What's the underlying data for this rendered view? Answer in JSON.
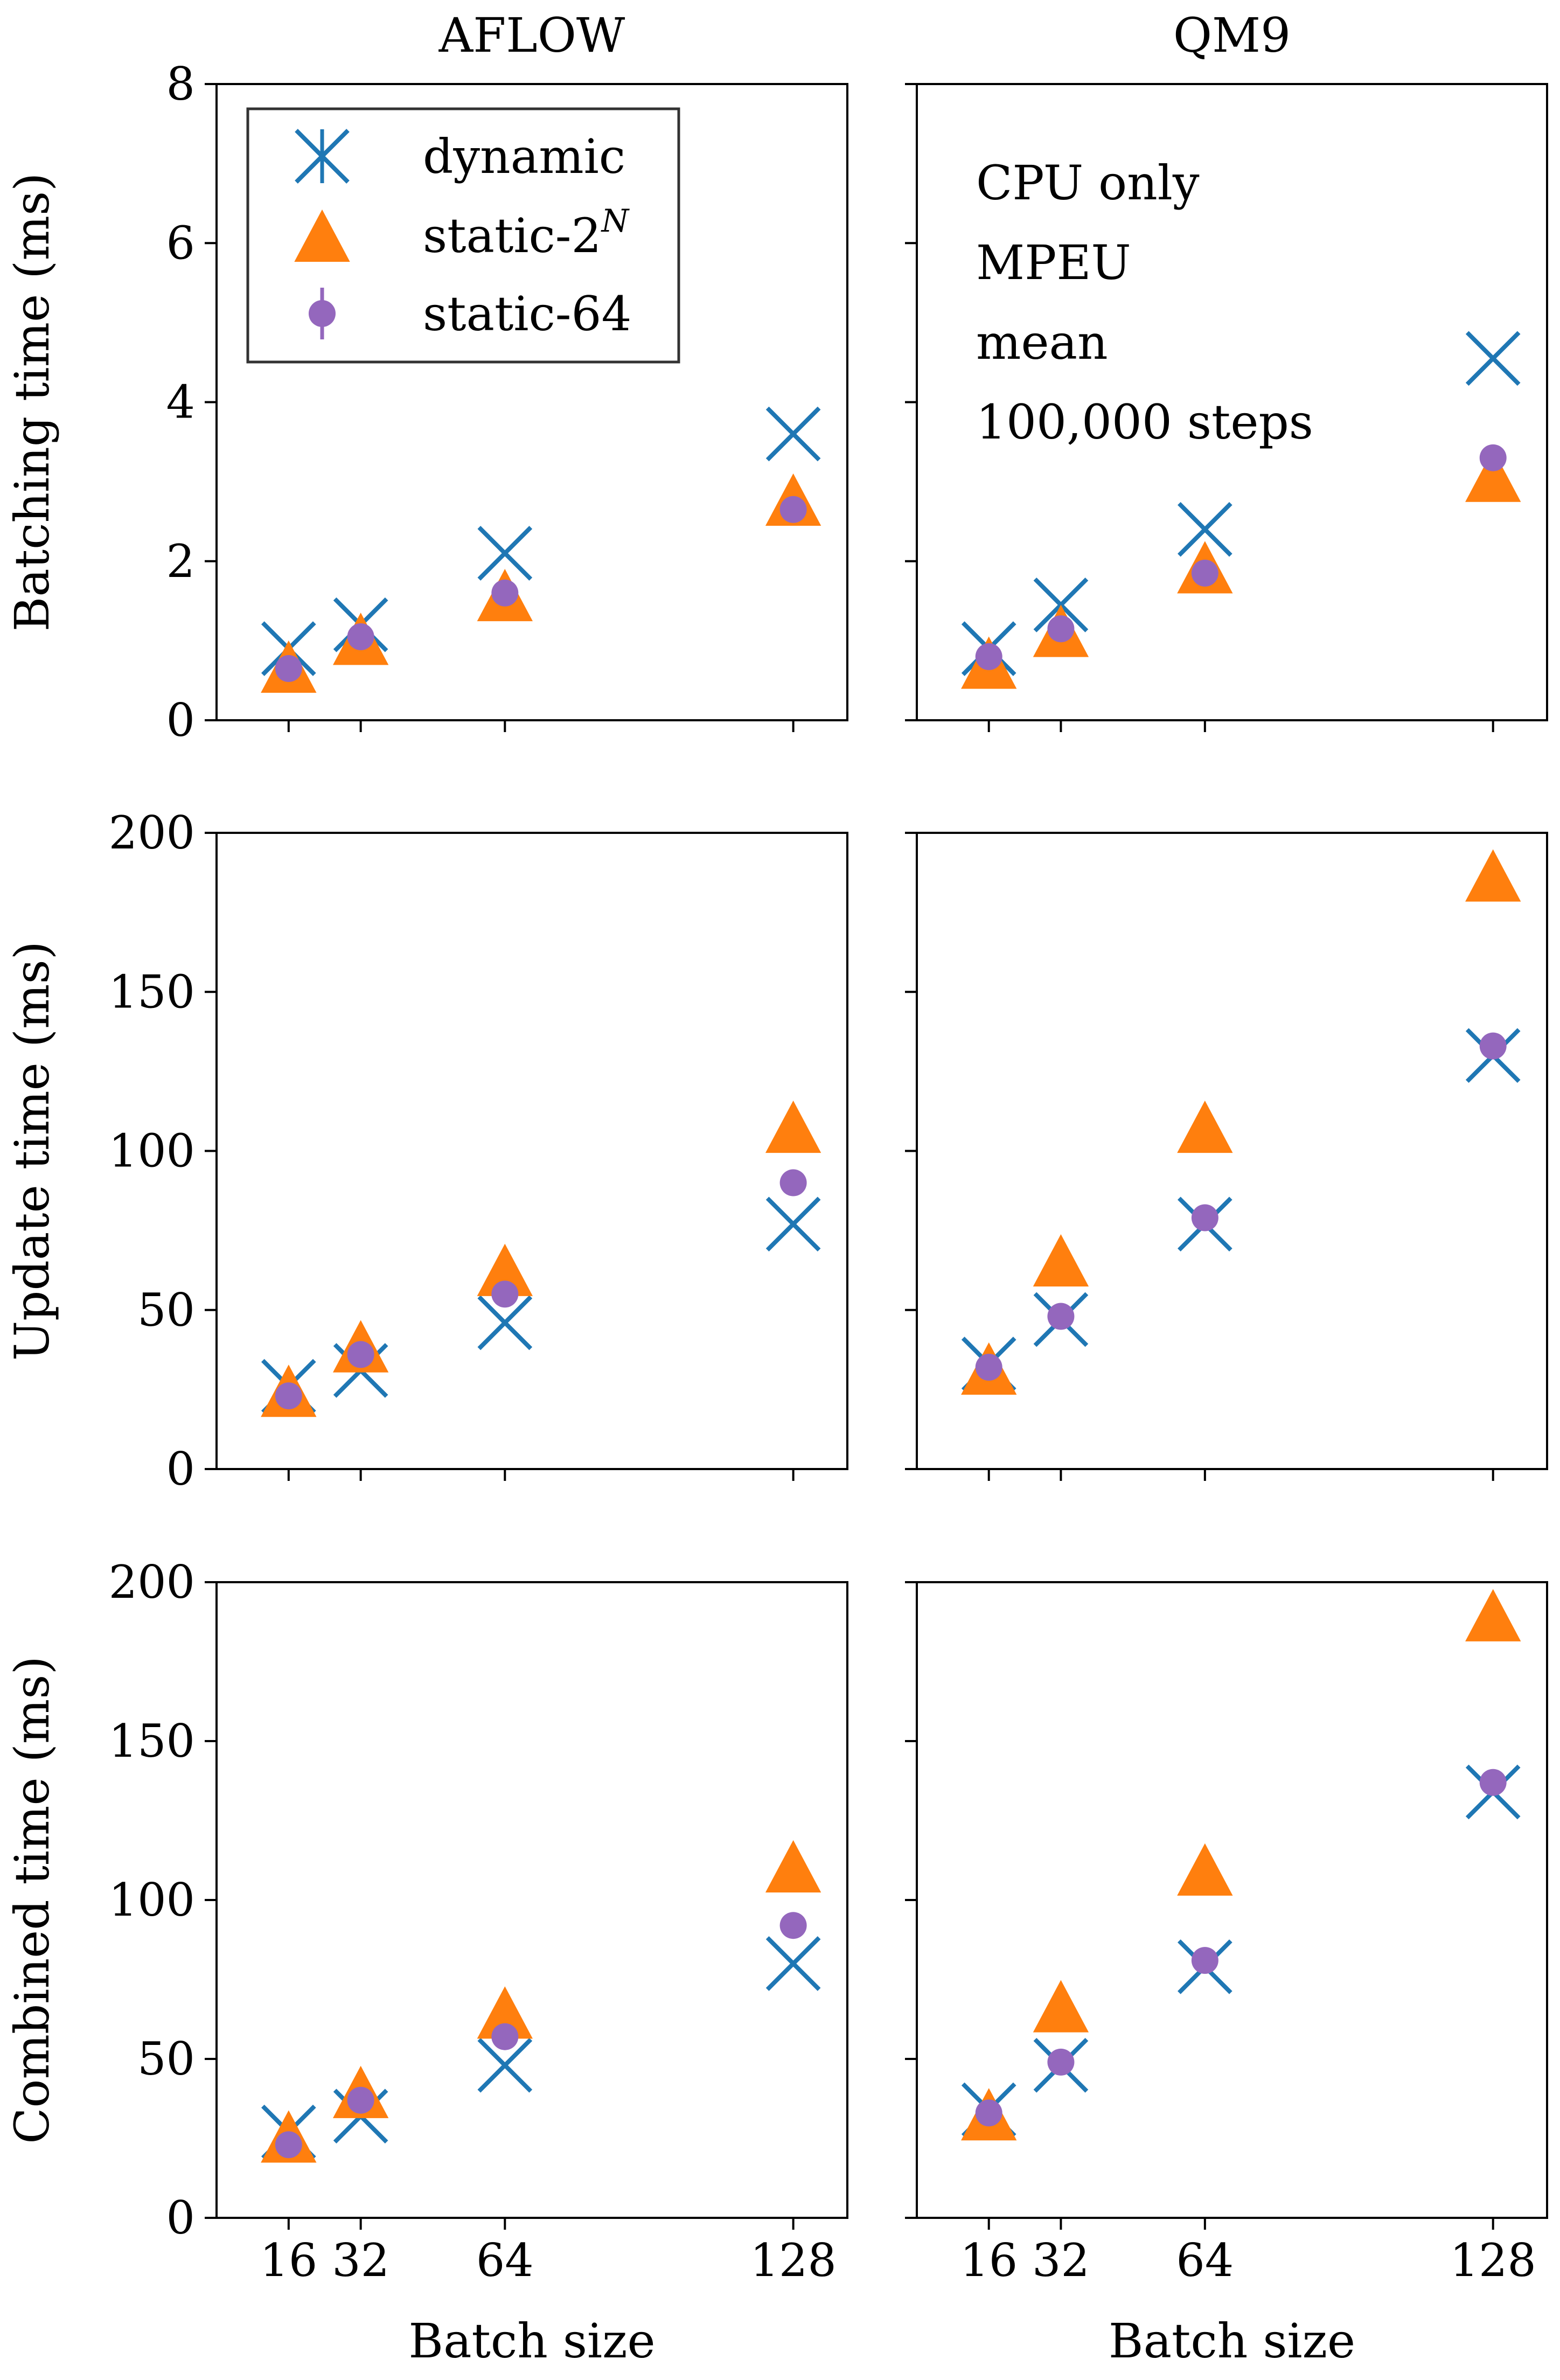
{
  "chart_data": {
    "type": "scatter",
    "layout": "3x2 grid, shared x axis per column, shared y axis per row",
    "columns": [
      "AFLOW",
      "QM9"
    ],
    "x": [
      16,
      32,
      64,
      128
    ],
    "x_tick_labels": [
      "16",
      "32",
      "64",
      "128"
    ],
    "xlabel": "Batch size",
    "xlim": [
      0,
      140
    ],
    "series_style": [
      {
        "name": "dynamic",
        "label": "dynamic",
        "marker": "x",
        "color": "#1f77b4"
      },
      {
        "name": "static-2N",
        "label": "static-2",
        "label_superscript": "N",
        "marker": "triangle",
        "color": "#ff7f0e"
      },
      {
        "name": "static-64",
        "label": "static-64",
        "marker": "circle",
        "color": "#9467bd"
      }
    ],
    "legend_position": "top-left of AFLOW batching panel",
    "annotation": [
      "CPU only",
      "MPEU",
      "mean",
      "100,000 steps"
    ],
    "rows": [
      {
        "ylabel": "Batching time (ms)",
        "ylim": [
          0,
          8
        ],
        "yticks": [
          0,
          2,
          4,
          6,
          8
        ],
        "panels": [
          {
            "dataset": "AFLOW",
            "series": [
              {
                "name": "dynamic",
                "values": [
                  0.9,
                  1.2,
                  2.1,
                  3.6
                ]
              },
              {
                "name": "static-2N",
                "values": [
                  0.65,
                  1.0,
                  1.55,
                  2.75
                ]
              },
              {
                "name": "static-64",
                "values": [
                  0.65,
                  1.05,
                  1.6,
                  2.65
                ]
              }
            ]
          },
          {
            "dataset": "QM9",
            "series": [
              {
                "name": "dynamic",
                "values": [
                  0.9,
                  1.45,
                  2.4,
                  4.55
                ]
              },
              {
                "name": "static-2N",
                "values": [
                  0.7,
                  1.1,
                  1.9,
                  3.05
                ]
              },
              {
                "name": "static-64",
                "values": [
                  0.8,
                  1.15,
                  1.85,
                  3.3
                ]
              }
            ]
          }
        ]
      },
      {
        "ylabel": "Update time (ms)",
        "ylim": [
          0,
          200
        ],
        "yticks": [
          0,
          50,
          100,
          150,
          200
        ],
        "panels": [
          {
            "dataset": "AFLOW",
            "series": [
              {
                "name": "dynamic",
                "values": [
                  26,
                  31,
                  46,
                  77
                ]
              },
              {
                "name": "static-2N",
                "values": [
                  24,
                  38,
                  62,
                  107
                ]
              },
              {
                "name": "static-64",
                "values": [
                  23,
                  36,
                  55,
                  90
                ]
              }
            ]
          },
          {
            "dataset": "QM9",
            "series": [
              {
                "name": "dynamic",
                "values": [
                  33,
                  47,
                  77,
                  130
                ]
              },
              {
                "name": "static-2N",
                "values": [
                  31,
                  65,
                  107,
                  186
                ]
              },
              {
                "name": "static-64",
                "values": [
                  32,
                  48,
                  79,
                  133
                ]
              }
            ]
          }
        ]
      },
      {
        "ylabel": "Combined time (ms)",
        "ylim": [
          0,
          200
        ],
        "yticks": [
          0,
          50,
          100,
          150,
          200
        ],
        "panels": [
          {
            "dataset": "AFLOW",
            "series": [
              {
                "name": "dynamic",
                "values": [
                  27,
                  32,
                  48,
                  80
                ]
              },
              {
                "name": "static-2N",
                "values": [
                  25,
                  39,
                  64,
                  110
                ]
              },
              {
                "name": "static-64",
                "values": [
                  23,
                  37,
                  57,
                  92
                ]
              }
            ]
          },
          {
            "dataset": "QM9",
            "series": [
              {
                "name": "dynamic",
                "values": [
                  34,
                  48,
                  79,
                  134
                ]
              },
              {
                "name": "static-2N",
                "values": [
                  32,
                  66,
                  109,
                  189
                ]
              },
              {
                "name": "static-64",
                "values": [
                  33,
                  49,
                  81,
                  137
                ]
              }
            ]
          }
        ]
      }
    ]
  }
}
